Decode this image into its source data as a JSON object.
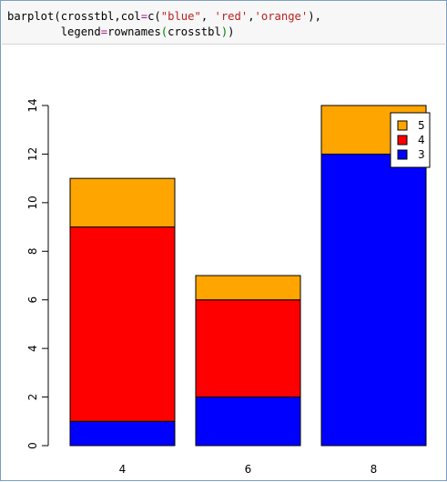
{
  "code": {
    "line1_a": "barplot(crosstbl,col",
    "line1_eq": "=",
    "line1_b": "c(",
    "line1_s1": "\"blue\"",
    "line1_c1": ", ",
    "line1_s2": "'red'",
    "line1_c2": ",",
    "line1_s3": "'orange'",
    "line1_end": "),",
    "line2_indent": "        legend",
    "line2_eq": "=",
    "line2_b": "rownames",
    "line2_open": "(",
    "line2_arg": "crosstbl",
    "line2_close": ")",
    "line2_end": ")"
  },
  "colors": {
    "series_3": "#0000ff",
    "series_4": "#ff0000",
    "series_5": "#ffa500"
  },
  "chart_data": {
    "type": "bar",
    "stacked": true,
    "categories": [
      "4",
      "6",
      "8"
    ],
    "series": [
      {
        "name": "3",
        "color": "#0000ff",
        "values": [
          1,
          2,
          12
        ]
      },
      {
        "name": "4",
        "color": "#ff0000",
        "values": [
          8,
          4,
          0
        ]
      },
      {
        "name": "5",
        "color": "#ffa500",
        "values": [
          2,
          1,
          2
        ]
      }
    ],
    "ylim": [
      0,
      14
    ],
    "yticks": [
      0,
      2,
      4,
      6,
      8,
      10,
      12,
      14
    ],
    "legend_entries": [
      "5",
      "4",
      "3"
    ],
    "legend_position": "top-right",
    "grid": false
  }
}
